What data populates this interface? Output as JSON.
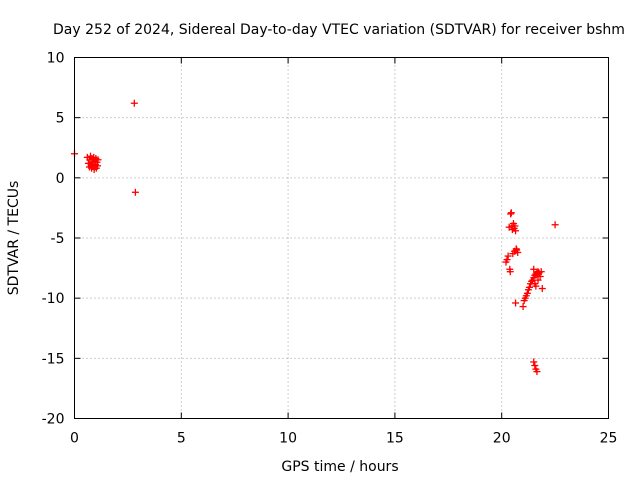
{
  "chart_data": {
    "type": "scatter",
    "title": "Day 252 of 2024, Sidereal Day-to-day VTEC variation (SDTVAR) for receiver bshm",
    "xlabel": "GPS time / hours",
    "ylabel": "SDTVAR / TECUs",
    "xlim": [
      0,
      25
    ],
    "ylim": [
      -20,
      10
    ],
    "xticks": [
      0,
      5,
      10,
      15,
      20,
      25
    ],
    "yticks": [
      -20,
      -15,
      -10,
      -5,
      0,
      5,
      10
    ],
    "xtick_labels": [
      "0",
      "5",
      "10",
      "15",
      "20",
      "25"
    ],
    "ytick_labels": [
      "-20",
      "-15",
      "-10",
      "-5",
      "0",
      "5",
      "10"
    ],
    "grid": true,
    "marker": "plus",
    "series": [
      {
        "name": "SDTVAR",
        "color": "#ff0000",
        "points": [
          [
            0.0,
            2.0
          ],
          [
            0.6,
            1.7
          ],
          [
            0.65,
            1.2
          ],
          [
            0.7,
            0.9
          ],
          [
            0.72,
            1.5
          ],
          [
            0.75,
            1.8
          ],
          [
            0.78,
            1.1
          ],
          [
            0.8,
            0.8
          ],
          [
            0.82,
            1.6
          ],
          [
            0.85,
            1.3
          ],
          [
            0.88,
            1.0
          ],
          [
            0.9,
            1.7
          ],
          [
            0.92,
            0.7
          ],
          [
            0.95,
            1.4
          ],
          [
            0.98,
            1.1
          ],
          [
            1.0,
            1.6
          ],
          [
            1.02,
            0.8
          ],
          [
            1.05,
            1.3
          ],
          [
            1.08,
            1.0
          ],
          [
            1.1,
            1.5
          ],
          [
            2.8,
            6.2
          ],
          [
            2.85,
            -1.2
          ],
          [
            20.2,
            -7.0
          ],
          [
            20.25,
            -6.8
          ],
          [
            20.3,
            -6.5
          ],
          [
            20.35,
            -4.1
          ],
          [
            20.38,
            -7.6
          ],
          [
            20.4,
            -7.8
          ],
          [
            20.42,
            -3.0
          ],
          [
            20.45,
            -2.9
          ],
          [
            20.48,
            -4.0
          ],
          [
            20.5,
            -4.3
          ],
          [
            20.52,
            -6.3
          ],
          [
            20.55,
            -3.8
          ],
          [
            20.58,
            -4.2
          ],
          [
            20.6,
            -6.1
          ],
          [
            20.62,
            -4.0
          ],
          [
            20.65,
            -4.4
          ],
          [
            20.68,
            -5.9
          ],
          [
            20.7,
            -6.0
          ],
          [
            20.75,
            -6.2
          ],
          [
            20.65,
            -10.4
          ],
          [
            21.0,
            -10.7
          ],
          [
            21.05,
            -10.2
          ],
          [
            21.1,
            -10.0
          ],
          [
            21.15,
            -9.8
          ],
          [
            21.2,
            -9.6
          ],
          [
            21.25,
            -9.3
          ],
          [
            21.3,
            -9.1
          ],
          [
            21.35,
            -8.8
          ],
          [
            21.4,
            -8.6
          ],
          [
            21.45,
            -8.5
          ],
          [
            21.5,
            -8.3
          ],
          [
            21.55,
            -8.1
          ],
          [
            21.6,
            -8.0
          ],
          [
            21.65,
            -7.9
          ],
          [
            21.7,
            -7.8
          ],
          [
            21.75,
            -7.9
          ],
          [
            21.8,
            -8.2
          ],
          [
            21.85,
            -7.8
          ],
          [
            21.5,
            -7.6
          ],
          [
            21.55,
            -8.8
          ],
          [
            21.6,
            -9.0
          ],
          [
            21.7,
            -8.5
          ],
          [
            21.9,
            -9.2
          ],
          [
            21.5,
            -15.3
          ],
          [
            21.55,
            -15.6
          ],
          [
            21.6,
            -15.9
          ],
          [
            21.65,
            -16.1
          ],
          [
            22.5,
            -3.9
          ]
        ]
      }
    ]
  }
}
